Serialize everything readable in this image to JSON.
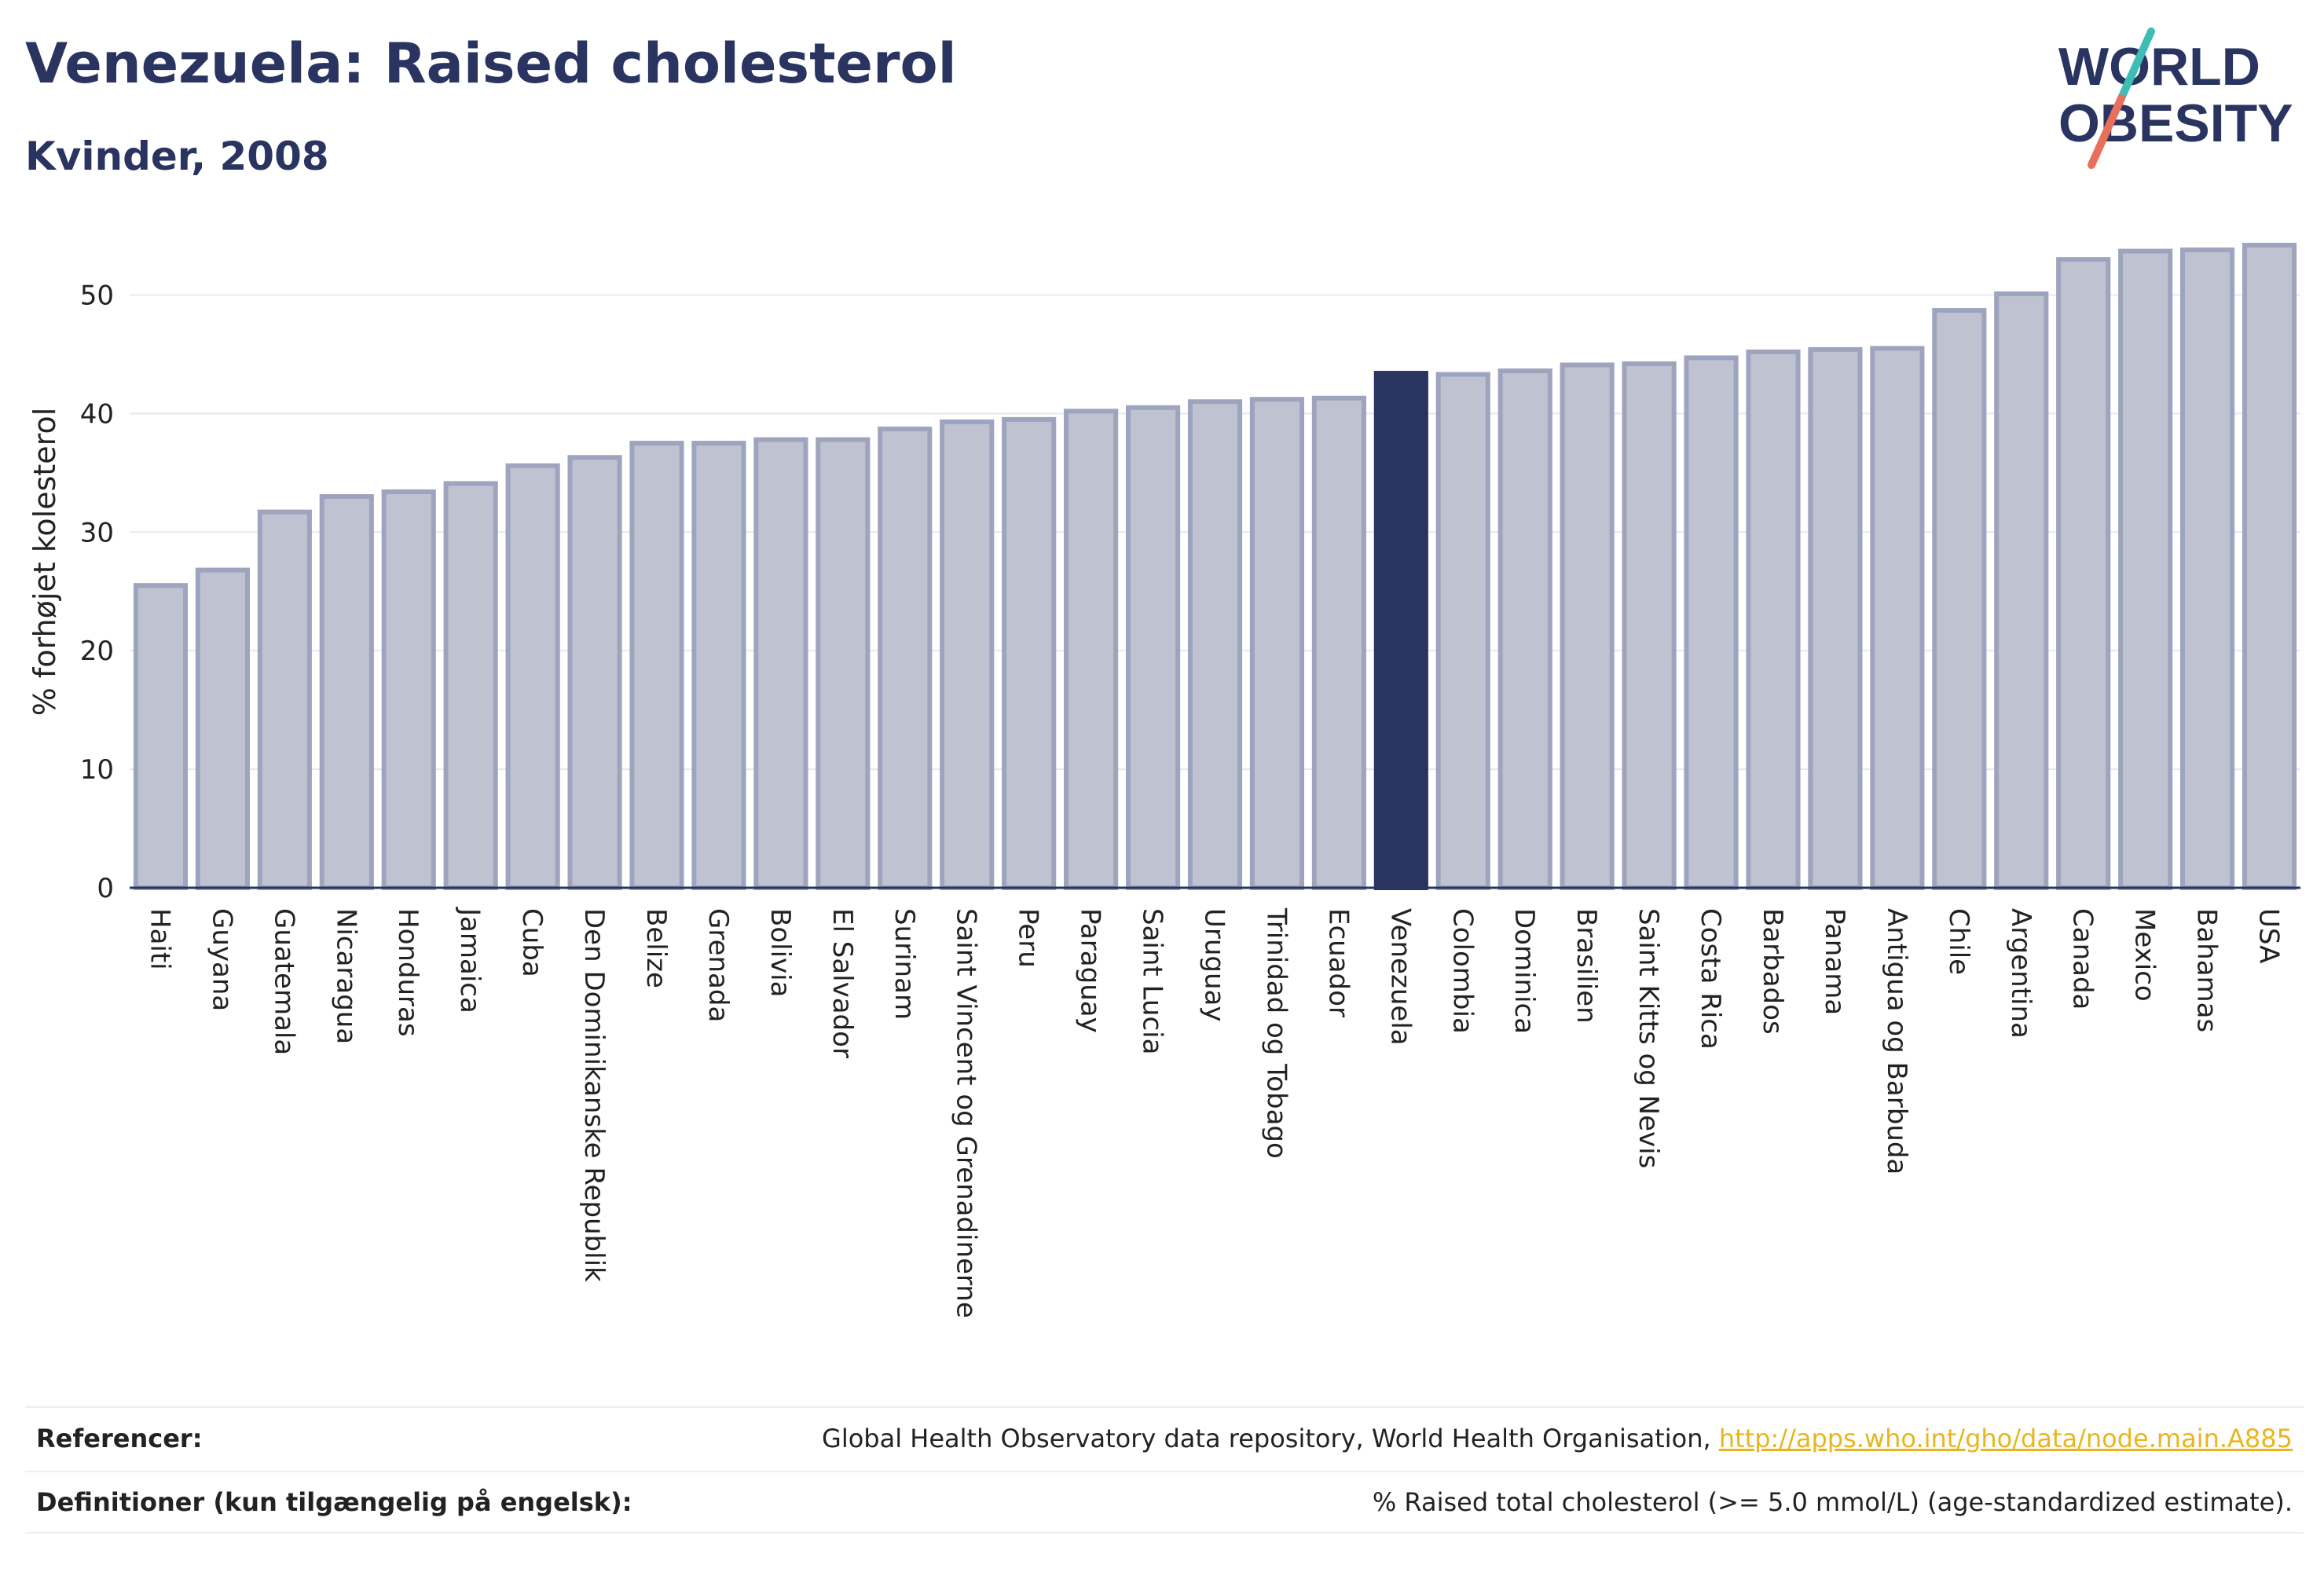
{
  "header": {
    "title": "Venezuela: Raised cholesterol",
    "subtitle": "Kvinder, 2008"
  },
  "logo": {
    "line1": "WORLD",
    "line2": "OBESITY",
    "accent_teal": "#3dbdb4",
    "accent_coral": "#e8705a",
    "brand_color": "#2a3461"
  },
  "colors": {
    "bar": "#bfc2d0",
    "bar_edge": "#9ea4bd",
    "highlight": "#2a3461",
    "grid": "#e6e8ee"
  },
  "chart_data": {
    "type": "bar",
    "ylabel": "% forhøjet kolesterol",
    "xlabel": "",
    "ylim": [
      0,
      55
    ],
    "yticks": [
      0,
      10,
      20,
      30,
      40,
      50
    ],
    "grid": true,
    "highlight": "Venezuela",
    "categories": [
      "Haiti",
      "Guyana",
      "Guatemala",
      "Nicaragua",
      "Honduras",
      "Jamaica",
      "Cuba",
      "Den Dominikanske Republik",
      "Belize",
      "Grenada",
      "Bolivia",
      "El Salvador",
      "Surinam",
      "Saint Vincent og Grenadinerne",
      "Peru",
      "Paraguay",
      "Saint Lucia",
      "Uruguay",
      "Trinidad og Tobago",
      "Ecuador",
      "Venezuela",
      "Colombia",
      "Dominica",
      "Brasilien",
      "Saint Kitts og Nevis",
      "Costa Rica",
      "Barbados",
      "Panama",
      "Antigua og Barbuda",
      "Chile",
      "Argentina",
      "Canada",
      "Mexico",
      "Bahamas",
      "USA"
    ],
    "values": [
      25.5,
      26.8,
      31.7,
      33.0,
      33.4,
      34.1,
      35.6,
      36.3,
      37.5,
      37.5,
      37.8,
      37.8,
      38.7,
      39.3,
      39.5,
      40.2,
      40.5,
      41.0,
      41.2,
      41.3,
      43.4,
      43.3,
      43.6,
      44.1,
      44.2,
      44.7,
      45.2,
      45.4,
      45.5,
      48.7,
      50.1,
      53.0,
      53.7,
      53.8,
      54.2
    ]
  },
  "footer": {
    "references_label": "Referencer:",
    "references_text": "Global Health Observatory data repository, World Health Organisation, ",
    "references_link": "http://apps.who.int/gho/data/node.main.A885",
    "definitions_label": "Definitioner (kun tilgængelig på engelsk):",
    "definitions_text": "% Raised total cholesterol (>= 5.0 mmol/L) (age-standardized estimate)."
  }
}
